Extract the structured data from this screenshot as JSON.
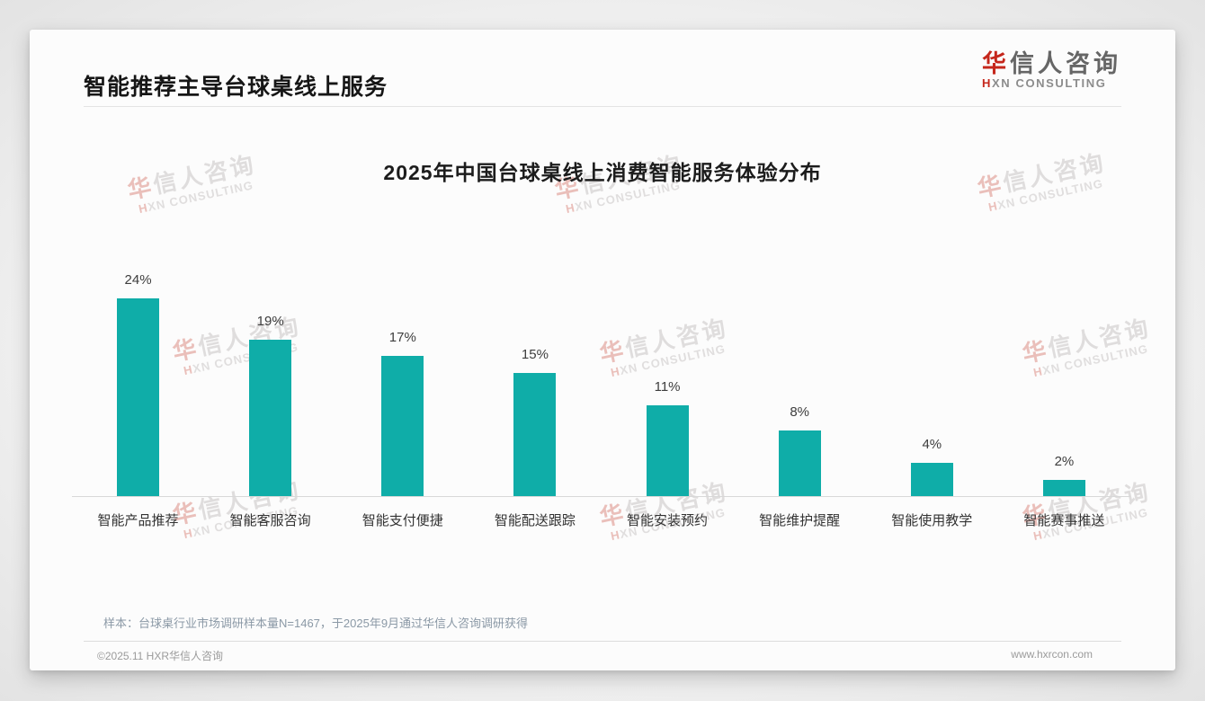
{
  "header": {
    "title": "智能推荐主导台球桌线上服务",
    "logo": {
      "zh_first": "华",
      "zh_rest": "信人咨询",
      "en_first": "H",
      "en_rest": "XN CONSULTING"
    }
  },
  "chart_data": {
    "type": "bar",
    "title": "2025年中国台球桌线上消费智能服务体验分布",
    "categories": [
      "智能产品推荐",
      "智能客服咨询",
      "智能支付便捷",
      "智能配送跟踪",
      "智能安装预约",
      "智能维护提醒",
      "智能使用教学",
      "智能赛事推送"
    ],
    "values": [
      24,
      19,
      17,
      15,
      11,
      8,
      4,
      2
    ],
    "labels": [
      "24%",
      "19%",
      "17%",
      "15%",
      "11%",
      "8%",
      "4%",
      "2%"
    ],
    "unit": "%",
    "ylim": [
      0,
      30
    ],
    "grid": false,
    "legend": "none",
    "bar_color": "#0fada8",
    "axis_line_color": "#d8d8d8"
  },
  "watermark": {
    "zh_first": "华",
    "zh_rest": "信人咨询",
    "en_first": "H",
    "en_rest": "XN CONSULTING"
  },
  "footer": {
    "note": "样本：台球桌行业市场调研样本量N=1467，于2025年9月通过华信人咨询调研获得",
    "copyright": "©2025.11 HXR华信人咨询",
    "website": "www.hxrcon.com"
  }
}
